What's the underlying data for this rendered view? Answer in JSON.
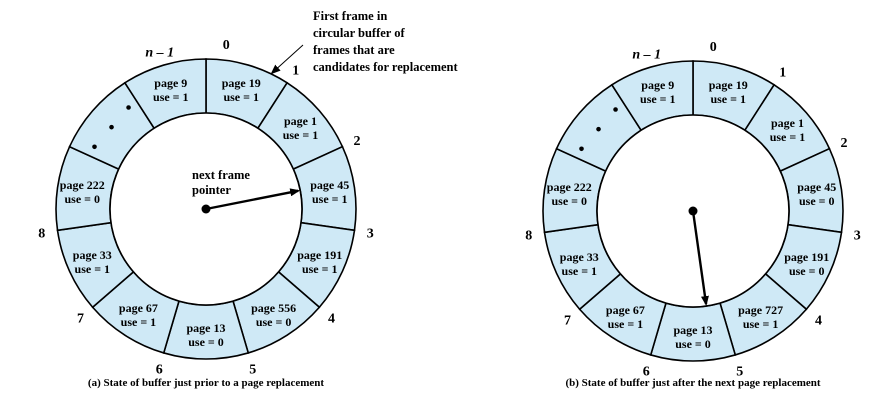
{
  "colors": {
    "slot_fill": "#cfe9f6",
    "stroke": "#000000",
    "background": "#ffffff"
  },
  "icons": {
    "pointer": "arrow-icon",
    "ellipsis": "vertical-dots-icon"
  },
  "diagrams": [
    {
      "caption": "(a) State of buffer just prior to a page replacement",
      "pointer_label": [
        "next frame",
        "pointer"
      ],
      "pointer_slot": 2,
      "index_labels": [
        "0",
        "1",
        "2",
        "3",
        "4",
        "5",
        "6",
        "7",
        "8",
        "n – 1"
      ],
      "slots": [
        {
          "page": "page 19",
          "use": "use = 1"
        },
        {
          "page": "page 1",
          "use": "use = 1"
        },
        {
          "page": "page 45",
          "use": "use = 1"
        },
        {
          "page": "page 191",
          "use": "use = 1"
        },
        {
          "page": "page 556",
          "use": "use = 0"
        },
        {
          "page": "page 13",
          "use": "use = 0"
        },
        {
          "page": "page 67",
          "use": "use = 1"
        },
        {
          "page": "page 33",
          "use": "use = 1"
        },
        {
          "page": "page 222",
          "use": "use = 0"
        },
        {
          "page": "",
          "use": "",
          "ellipsis": true
        },
        {
          "page": "page 9",
          "use": "use = 1"
        }
      ],
      "annotation": [
        "First frame in",
        "circular buffer of",
        "frames that are",
        "candidates for replacement"
      ]
    },
    {
      "caption": "(b) State of buffer just after the next page replacement",
      "pointer_label": [],
      "pointer_slot": 5,
      "index_labels": [
        "0",
        "1",
        "2",
        "3",
        "4",
        "5",
        "6",
        "7",
        "8",
        "n – 1"
      ],
      "slots": [
        {
          "page": "page 19",
          "use": "use = 1"
        },
        {
          "page": "page 1",
          "use": "use = 1"
        },
        {
          "page": "page 45",
          "use": "use = 0"
        },
        {
          "page": "page 191",
          "use": "use = 0"
        },
        {
          "page": "page 727",
          "use": "use = 1"
        },
        {
          "page": "page 13",
          "use": "use = 0"
        },
        {
          "page": "page 67",
          "use": "use = 1"
        },
        {
          "page": "page 33",
          "use": "use = 1"
        },
        {
          "page": "page 222",
          "use": "use = 0"
        },
        {
          "page": "",
          "use": "",
          "ellipsis": true
        },
        {
          "page": "page 9",
          "use": "use = 1"
        }
      ]
    }
  ]
}
